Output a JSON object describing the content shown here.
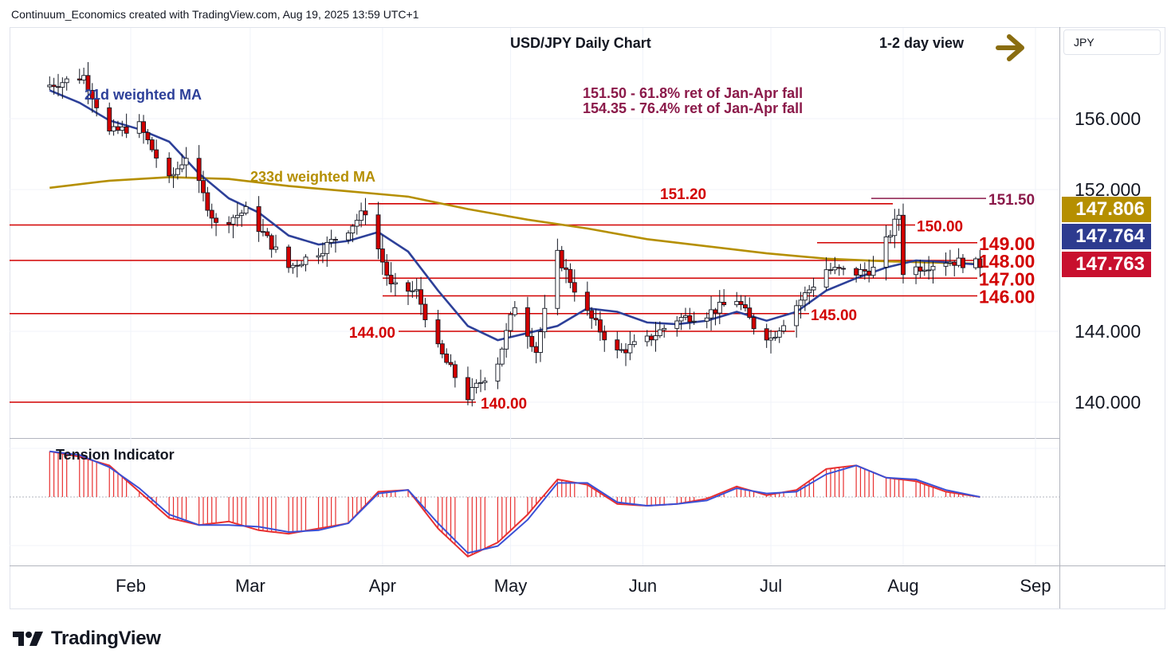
{
  "header": {
    "credit": "Continuum_Economics created with TradingView.com, Aug 19, 2025 13:59 UTC+1",
    "title": "USD/JPY Daily Chart",
    "view_label": "1-2 day view",
    "currency": "JPY"
  },
  "brand": {
    "name": "TradingView",
    "logo": "tradingview-logo-icon"
  },
  "colors": {
    "up_candle": "#ffffff",
    "down_candle": "#d10000",
    "wick": "#131722",
    "ma21": "#2d4099",
    "ma233": "#b58f00",
    "level_line": "#d20000",
    "fib_line": "#8b1a4a",
    "tension_fill": "#e83030",
    "tension_line": "#3a50d6",
    "badge_ma233": "#b58f00",
    "badge_ma21": "#2d3b8f",
    "badge_price": "#c8102e"
  },
  "annotations": {
    "ma21_label": "21d weighted MA",
    "ma233_label": "233d weighted MA",
    "fib_line1": "151.50 - 61.8% ret of Jan-Apr fall",
    "fib_line2": "154.35 - 76.4% ret of Jan-Apr fall",
    "tension_label": "Tension Indicator"
  },
  "chart_data": {
    "type": "candlestick",
    "title": "USD/JPY Daily Chart",
    "y_axis": {
      "ticks": [
        "156.000",
        "152.000",
        "144.000",
        "140.000"
      ],
      "ylim": [
        138.0,
        160.5
      ]
    },
    "x_axis": {
      "ticks": [
        "Feb",
        "Mar",
        "Apr",
        "May",
        "Jun",
        "Jul",
        "Aug",
        "Sep"
      ]
    },
    "levels": [
      {
        "label": "151.20",
        "value": 151.2
      },
      {
        "label": "151.50",
        "value": 151.5
      },
      {
        "label": "150.00",
        "value": 150.0
      },
      {
        "label": "149.00",
        "value": 149.0
      },
      {
        "label": "148.00",
        "value": 148.0
      },
      {
        "label": "147.00",
        "value": 147.0
      },
      {
        "label": "146.00",
        "value": 146.0
      },
      {
        "label": "145.00",
        "value": 145.0
      },
      {
        "label": "144.00",
        "value": 144.0
      },
      {
        "label": "140.00",
        "value": 140.0
      }
    ],
    "price_badges": [
      {
        "label": "147.806",
        "series": "233d weighted MA",
        "value": 147.806
      },
      {
        "label": "147.764",
        "series": "21d weighted MA",
        "value": 147.764
      },
      {
        "label": "147.763",
        "series": "USD/JPY",
        "value": 147.763
      }
    ],
    "ma21_path": [
      [
        "2025-01-13",
        157.6
      ],
      [
        "2025-01-20",
        156.9
      ],
      [
        "2025-01-27",
        155.9
      ],
      [
        "2025-02-03",
        155.4
      ],
      [
        "2025-02-10",
        154.7
      ],
      [
        "2025-02-17",
        152.9
      ],
      [
        "2025-02-24",
        151.5
      ],
      [
        "2025-03-03",
        150.7
      ],
      [
        "2025-03-10",
        149.4
      ],
      [
        "2025-03-17",
        148.9
      ],
      [
        "2025-03-24",
        149.1
      ],
      [
        "2025-03-31",
        149.6
      ],
      [
        "2025-04-07",
        148.5
      ],
      [
        "2025-04-14",
        146.3
      ],
      [
        "2025-04-21",
        144.3
      ],
      [
        "2025-04-28",
        143.5
      ],
      [
        "2025-05-05",
        143.9
      ],
      [
        "2025-05-12",
        144.3
      ],
      [
        "2025-05-19",
        145.3
      ],
      [
        "2025-05-26",
        145.1
      ],
      [
        "2025-06-02",
        144.5
      ],
      [
        "2025-06-09",
        144.4
      ],
      [
        "2025-06-16",
        144.6
      ],
      [
        "2025-06-23",
        145.1
      ],
      [
        "2025-06-30",
        144.6
      ],
      [
        "2025-07-07",
        145.1
      ],
      [
        "2025-07-14",
        146.3
      ],
      [
        "2025-07-21",
        147.0
      ],
      [
        "2025-07-28",
        147.6
      ],
      [
        "2025-08-04",
        148.0
      ],
      [
        "2025-08-11",
        147.9
      ],
      [
        "2025-08-19",
        147.76
      ]
    ],
    "ma233_path": [
      [
        "2025-01-13",
        152.1
      ],
      [
        "2025-01-27",
        152.5
      ],
      [
        "2025-02-10",
        152.7
      ],
      [
        "2025-02-24",
        152.6
      ],
      [
        "2025-03-10",
        152.2
      ],
      [
        "2025-03-24",
        151.9
      ],
      [
        "2025-04-07",
        151.6
      ],
      [
        "2025-04-21",
        150.9
      ],
      [
        "2025-05-05",
        150.3
      ],
      [
        "2025-05-19",
        149.8
      ],
      [
        "2025-06-02",
        149.2
      ],
      [
        "2025-06-16",
        148.8
      ],
      [
        "2025-06-30",
        148.4
      ],
      [
        "2025-07-14",
        148.1
      ],
      [
        "2025-07-28",
        147.95
      ],
      [
        "2025-08-19",
        147.81
      ]
    ],
    "tension_indicator": {
      "histogram": [
        [
          "2025-01-13",
          2.6
        ],
        [
          "2025-01-20",
          2.3
        ],
        [
          "2025-01-27",
          1.8
        ],
        [
          "2025-02-03",
          0.3
        ],
        [
          "2025-02-10",
          -1.2
        ],
        [
          "2025-02-17",
          -1.6
        ],
        [
          "2025-02-24",
          -1.4
        ],
        [
          "2025-03-03",
          -1.9
        ],
        [
          "2025-03-10",
          -2.1
        ],
        [
          "2025-03-17",
          -1.8
        ],
        [
          "2025-03-24",
          -1.5
        ],
        [
          "2025-03-31",
          0.3
        ],
        [
          "2025-04-07",
          0.4
        ],
        [
          "2025-04-14",
          -1.8
        ],
        [
          "2025-04-21",
          -3.4
        ],
        [
          "2025-04-28",
          -2.6
        ],
        [
          "2025-05-05",
          -1.0
        ],
        [
          "2025-05-12",
          1.0
        ],
        [
          "2025-05-19",
          0.7
        ],
        [
          "2025-05-26",
          -0.4
        ],
        [
          "2025-06-02",
          -0.5
        ],
        [
          "2025-06-09",
          -0.4
        ],
        [
          "2025-06-16",
          -0.1
        ],
        [
          "2025-06-23",
          0.6
        ],
        [
          "2025-06-30",
          0.1
        ],
        [
          "2025-07-07",
          0.4
        ],
        [
          "2025-07-14",
          1.6
        ],
        [
          "2025-07-21",
          1.8
        ],
        [
          "2025-07-28",
          1.1
        ],
        [
          "2025-08-04",
          0.9
        ],
        [
          "2025-08-11",
          0.3
        ],
        [
          "2025-08-19",
          0.0
        ]
      ],
      "signal_line": [
        [
          "2025-01-13",
          2.6
        ],
        [
          "2025-01-20",
          2.4
        ],
        [
          "2025-01-27",
          1.7
        ],
        [
          "2025-02-03",
          0.5
        ],
        [
          "2025-02-10",
          -1.0
        ],
        [
          "2025-02-17",
          -1.6
        ],
        [
          "2025-02-24",
          -1.6
        ],
        [
          "2025-03-03",
          -1.7
        ],
        [
          "2025-03-10",
          -2.0
        ],
        [
          "2025-03-17",
          -1.9
        ],
        [
          "2025-03-24",
          -1.5
        ],
        [
          "2025-03-31",
          0.2
        ],
        [
          "2025-04-07",
          0.4
        ],
        [
          "2025-04-14",
          -1.5
        ],
        [
          "2025-04-21",
          -3.2
        ],
        [
          "2025-04-28",
          -2.8
        ],
        [
          "2025-05-05",
          -1.3
        ],
        [
          "2025-05-12",
          0.8
        ],
        [
          "2025-05-19",
          0.8
        ],
        [
          "2025-05-26",
          -0.3
        ],
        [
          "2025-06-02",
          -0.5
        ],
        [
          "2025-06-09",
          -0.4
        ],
        [
          "2025-06-16",
          -0.2
        ],
        [
          "2025-06-23",
          0.5
        ],
        [
          "2025-06-30",
          0.2
        ],
        [
          "2025-07-07",
          0.3
        ],
        [
          "2025-07-14",
          1.3
        ],
        [
          "2025-07-21",
          1.8
        ],
        [
          "2025-07-28",
          1.1
        ],
        [
          "2025-08-04",
          1.0
        ],
        [
          "2025-08-11",
          0.4
        ],
        [
          "2025-08-19",
          0.0
        ]
      ]
    }
  }
}
